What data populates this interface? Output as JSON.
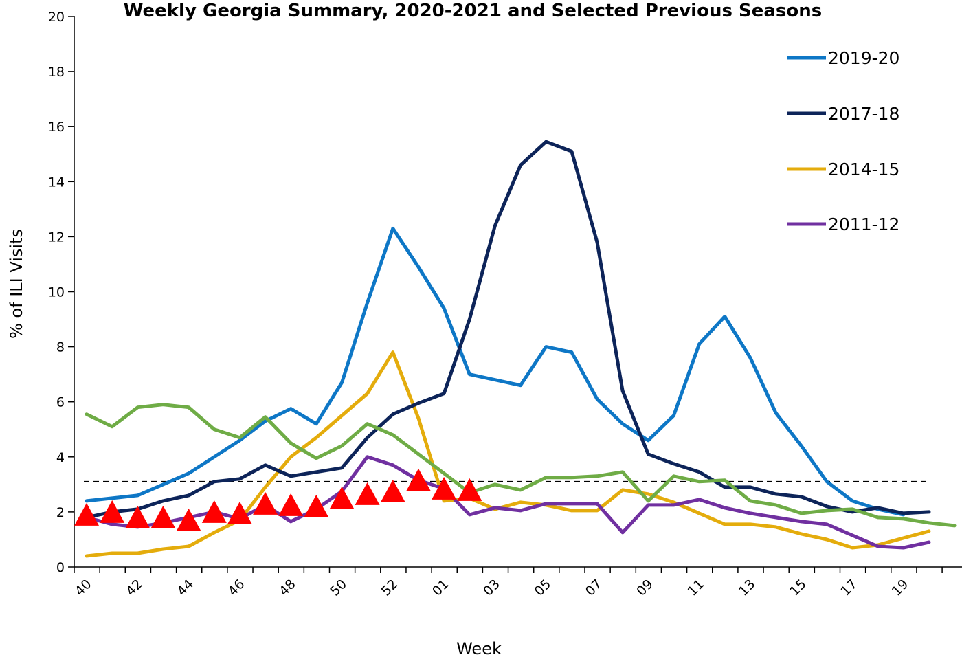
{
  "chart_data": {
    "type": "line",
    "title": "Weekly Georgia Summary, 2020-2021 and Selected Previous Seasons",
    "xlabel": "Week",
    "ylabel": "% of ILI Visits",
    "ylim": [
      0,
      20
    ],
    "yticks": [
      "0",
      "2",
      "4",
      "6",
      "8",
      "10",
      "12",
      "14",
      "16",
      "18",
      "20"
    ],
    "x_tick_labels": [
      "40",
      "42",
      "44",
      "46",
      "48",
      "50",
      "52",
      "01",
      "03",
      "05",
      "07",
      "09",
      "11",
      "13",
      "15",
      "17",
      "19"
    ],
    "baseline": 3.1,
    "grid": false,
    "legend_position": "top-right",
    "series": [
      {
        "name": "2019-20",
        "color": "#0e77c6",
        "values": [
          2.4,
          2.5,
          2.6,
          3.0,
          3.4,
          4.0,
          4.6,
          5.3,
          5.75,
          5.2,
          6.7,
          9.6,
          12.3,
          10.9,
          9.4,
          7.0,
          6.8,
          6.6,
          8.0,
          7.8,
          6.1,
          5.2,
          4.6,
          5.5,
          8.1,
          9.1,
          7.6,
          5.6,
          4.4,
          3.1,
          2.4,
          2.1,
          1.9
        ]
      },
      {
        "name": "2017-18",
        "color": "#0d2459",
        "values": [
          1.8,
          2.0,
          2.1,
          2.4,
          2.6,
          3.1,
          3.2,
          3.7,
          3.3,
          3.45,
          3.6,
          4.7,
          5.55,
          5.95,
          6.3,
          9.0,
          12.4,
          14.6,
          15.45,
          15.1,
          11.8,
          6.4,
          4.1,
          3.75,
          3.45,
          2.9,
          2.9,
          2.65,
          2.55,
          2.2,
          2.0,
          2.15,
          1.95,
          2.0
        ]
      },
      {
        "name": "2014-15",
        "color": "#e4ac0c",
        "values": [
          0.4,
          0.5,
          0.5,
          0.65,
          0.75,
          1.25,
          1.7,
          2.9,
          4.0,
          4.7,
          5.5,
          6.3,
          7.8,
          5.4,
          2.4,
          2.5,
          2.1,
          2.35,
          2.25,
          2.05,
          2.05,
          2.8,
          2.65,
          2.35,
          1.95,
          1.55,
          1.55,
          1.45,
          1.2,
          1.0,
          0.7,
          0.8,
          1.05,
          1.3
        ]
      },
      {
        "name": "2011-12",
        "color": "#7030a0",
        "values": [
          1.8,
          1.55,
          1.45,
          1.6,
          1.8,
          2.0,
          1.75,
          2.25,
          1.65,
          2.1,
          2.75,
          4.0,
          3.7,
          3.15,
          2.85,
          1.9,
          2.15,
          2.05,
          2.3,
          2.3,
          2.3,
          1.25,
          2.25,
          2.25,
          2.45,
          2.15,
          1.95,
          1.8,
          1.65,
          1.55,
          1.15,
          0.75,
          0.7,
          0.9
        ]
      },
      {
        "name": "",
        "color": "#6fac46",
        "values": [
          5.55,
          5.1,
          5.8,
          5.9,
          5.8,
          5.0,
          4.7,
          5.45,
          4.5,
          3.95,
          4.4,
          5.2,
          4.8,
          4.1,
          3.4,
          2.7,
          3.0,
          2.8,
          3.25,
          3.25,
          3.3,
          3.45,
          2.4,
          3.3,
          3.1,
          3.15,
          2.4,
          2.25,
          1.95,
          2.05,
          2.1,
          1.8,
          1.75,
          1.6,
          1.5
        ]
      },
      {
        "name": "",
        "color": "#ff0000",
        "marker": "triangle",
        "values": [
          1.85,
          1.95,
          1.75,
          1.75,
          1.65,
          1.95,
          1.9,
          2.25,
          2.2,
          2.15,
          2.45,
          2.6,
          2.7,
          3.1,
          2.8,
          2.75
        ]
      }
    ]
  }
}
